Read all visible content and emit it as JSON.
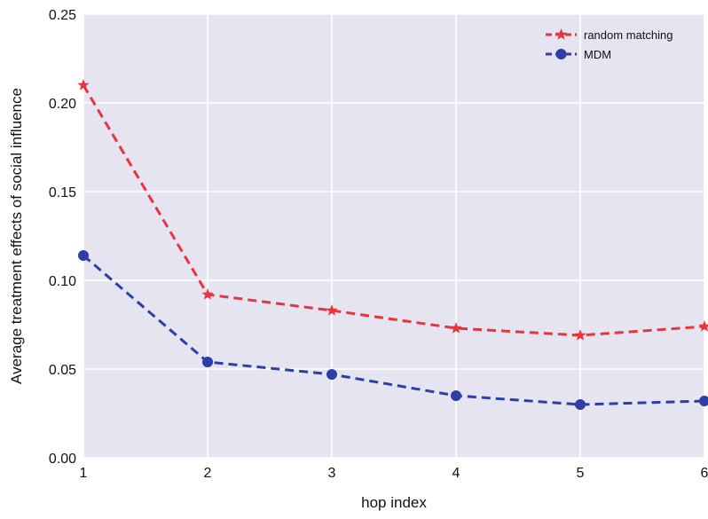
{
  "chart_data": {
    "type": "line",
    "title": "",
    "xlabel": "hop index",
    "ylabel": "Average treatment effects of social influence",
    "x": [
      1,
      2,
      3,
      4,
      5,
      6
    ],
    "xlim": [
      1,
      6
    ],
    "ylim": [
      0,
      0.25
    ],
    "xticks": [
      "1",
      "2",
      "3",
      "4",
      "5",
      "6"
    ],
    "yticks": [
      "0.00",
      "0.05",
      "0.10",
      "0.15",
      "0.20",
      "0.25"
    ],
    "grid": true,
    "legend_position": "top-right",
    "series": [
      {
        "name": "random matching",
        "values": [
          0.21,
          0.092,
          0.083,
          0.073,
          0.069,
          0.074
        ],
        "color": "#e8343c",
        "marker": "star",
        "linestyle": "dashed"
      },
      {
        "name": "MDM",
        "values": [
          0.114,
          0.054,
          0.047,
          0.035,
          0.03,
          0.032
        ],
        "color": "#2c3ea8",
        "marker": "circle",
        "linestyle": "dashed"
      }
    ],
    "colors": {
      "plot_background": "#e5e4f0",
      "grid": "#ffffff"
    }
  }
}
